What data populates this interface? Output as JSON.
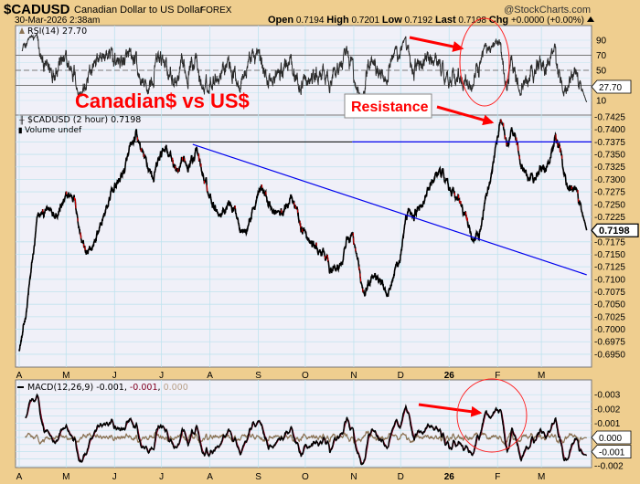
{
  "header": {
    "symbol": "$CADUSD",
    "name": "Canadian Dollar to US Dollar",
    "exchange": "FOREX",
    "brand": "@StockCharts.com",
    "datetime": "30-Mar-2026 2:38am",
    "open_label": "Open",
    "open": "0.7194",
    "high_label": "High",
    "high": "0.7201",
    "low_label": "Low",
    "low": "0.7192",
    "last_label": "Last",
    "last": "0.7198",
    "chg_label": "Chg",
    "chg": "+0.0000 (+0.00%)",
    "chg_icon": "triangle-up-icon"
  },
  "annotations": {
    "title": "Canadian$ vs US$",
    "resistance": "Resistance",
    "color": "#ff0000"
  },
  "colors": {
    "background": "#efce8f",
    "panel": "#f0f0f8",
    "grid": "#bfe3ee",
    "price": "#000000",
    "down_bar": "#e00000",
    "trendline": "#0000ee",
    "macd": "#000000",
    "signal": "#800020",
    "histogram": "#8b7355"
  },
  "chart_data": [
    {
      "type": "line",
      "panel": "RSI",
      "legend": "RSI(14) 27.70",
      "last_value": "27.70",
      "ylim": [
        0,
        100
      ],
      "ticks": [
        "90",
        "70",
        "50",
        "10"
      ],
      "reference_lines": [
        70,
        50,
        30
      ],
      "grid": true
    },
    {
      "type": "line",
      "panel": "price",
      "legend": "$CADUSD (2 hour) 0.7198",
      "volume_legend": "Volume undef",
      "last_value": "0.7198",
      "ylim": [
        0.6935,
        0.7435
      ],
      "ticks": [
        "0.7425",
        "0.7400",
        "0.7375",
        "0.7350",
        "0.7325",
        "0.7300",
        "0.7275",
        "0.7250",
        "0.7225",
        "0.7175",
        "0.7150",
        "0.7125",
        "0.7100",
        "0.7075",
        "0.7050",
        "0.7025",
        "0.7000",
        "0.6975",
        "0.6950"
      ],
      "x_ticks": [
        "A",
        "M",
        "J",
        "J",
        "A",
        "S",
        "O",
        "N",
        "D",
        "26",
        "F",
        "M"
      ],
      "x_tick_dates": [
        "2025-04-01",
        "2025-05-01",
        "2025-06-01",
        "2025-07-01",
        "2025-08-01",
        "2025-09-01",
        "2025-10-01",
        "2025-11-01",
        "2025-12-01",
        "2026-01-01",
        "2026-02-01",
        "2026-03-01"
      ],
      "x_range": [
        "2025-04-01",
        "2026-03-30"
      ],
      "grid": true,
      "series": [
        {
          "date": "2025-04-01",
          "value": 0.6965
        },
        {
          "date": "2025-04-04",
          "value": 0.7
        },
        {
          "date": "2025-04-09",
          "value": 0.712
        },
        {
          "date": "2025-04-13",
          "value": 0.722
        },
        {
          "date": "2025-04-22",
          "value": 0.724
        },
        {
          "date": "2025-04-30",
          "value": 0.7255
        },
        {
          "date": "2025-05-06",
          "value": 0.727
        },
        {
          "date": "2025-05-11",
          "value": 0.718
        },
        {
          "date": "2025-05-15",
          "value": 0.714
        },
        {
          "date": "2025-05-22",
          "value": 0.72
        },
        {
          "date": "2025-05-30",
          "value": 0.727
        },
        {
          "date": "2025-06-06",
          "value": 0.731
        },
        {
          "date": "2025-06-11",
          "value": 0.735
        },
        {
          "date": "2025-06-15",
          "value": 0.738
        },
        {
          "date": "2025-06-21",
          "value": 0.733
        },
        {
          "date": "2025-06-26",
          "value": 0.7305
        },
        {
          "date": "2025-07-04",
          "value": 0.737
        },
        {
          "date": "2025-07-12",
          "value": 0.731
        },
        {
          "date": "2025-07-17",
          "value": 0.733
        },
        {
          "date": "2025-07-23",
          "value": 0.736
        },
        {
          "date": "2025-07-31",
          "value": 0.727
        },
        {
          "date": "2025-08-08",
          "value": 0.724
        },
        {
          "date": "2025-08-14",
          "value": 0.726
        },
        {
          "date": "2025-08-20",
          "value": 0.722
        },
        {
          "date": "2025-08-24",
          "value": 0.72
        },
        {
          "date": "2025-08-30",
          "value": 0.725
        },
        {
          "date": "2025-09-03",
          "value": 0.728
        },
        {
          "date": "2025-09-10",
          "value": 0.724
        },
        {
          "date": "2025-09-16",
          "value": 0.7225
        },
        {
          "date": "2025-09-22",
          "value": 0.728
        },
        {
          "date": "2025-09-28",
          "value": 0.721
        },
        {
          "date": "2025-10-04",
          "value": 0.717
        },
        {
          "date": "2025-10-12",
          "value": 0.715
        },
        {
          "date": "2025-10-18",
          "value": 0.7115
        },
        {
          "date": "2025-10-25",
          "value": 0.714
        },
        {
          "date": "2025-10-31",
          "value": 0.719
        },
        {
          "date": "2025-11-07",
          "value": 0.7075
        },
        {
          "date": "2025-11-15",
          "value": 0.7125
        },
        {
          "date": "2025-11-22",
          "value": 0.708
        },
        {
          "date": "2025-11-30",
          "value": 0.714
        },
        {
          "date": "2025-12-06",
          "value": 0.722
        },
        {
          "date": "2025-12-13",
          "value": 0.724
        },
        {
          "date": "2025-12-26",
          "value": 0.732
        },
        {
          "date": "2026-01-02",
          "value": 0.729
        },
        {
          "date": "2026-01-08",
          "value": 0.725
        },
        {
          "date": "2026-01-15",
          "value": 0.719
        },
        {
          "date": "2026-01-20",
          "value": 0.718
        },
        {
          "date": "2026-01-25",
          "value": 0.727
        },
        {
          "date": "2026-01-29",
          "value": 0.733
        },
        {
          "date": "2026-02-03",
          "value": 0.742
        },
        {
          "date": "2026-02-07",
          "value": 0.736
        },
        {
          "date": "2026-02-12",
          "value": 0.74
        },
        {
          "date": "2026-02-16",
          "value": 0.733
        },
        {
          "date": "2026-02-22",
          "value": 0.731
        },
        {
          "date": "2026-03-01",
          "value": 0.732
        },
        {
          "date": "2026-03-05",
          "value": 0.733
        },
        {
          "date": "2026-03-10",
          "value": 0.739
        },
        {
          "date": "2026-03-15",
          "value": 0.734
        },
        {
          "date": "2026-03-19",
          "value": 0.729
        },
        {
          "date": "2026-03-25",
          "value": 0.726
        },
        {
          "date": "2026-03-30",
          "value": 0.7198
        }
      ],
      "resistance_line": {
        "value": 0.7375,
        "from": "2025-06-12",
        "to": "2026-03-30"
      },
      "trend_line": {
        "from": {
          "date": "2025-07-21",
          "value": 0.737
        },
        "to": {
          "date": "2026-03-30",
          "value": 0.7109
        }
      }
    },
    {
      "type": "line",
      "panel": "MACD",
      "legend_prefix": "MACD(12,26,9)",
      "macd_value": "-0.001",
      "signal_value": "-0.001",
      "histogram_value": "0.000",
      "ylim": [
        -0.0025,
        0.0035
      ],
      "ticks": [
        "0.003",
        "0.002",
        "0.001",
        "-0.002"
      ],
      "markers": [
        "0.000",
        "-0.001"
      ],
      "x_ticks": [
        "A",
        "M",
        "J",
        "J",
        "A",
        "S",
        "O",
        "N",
        "D",
        "26",
        "F",
        "M"
      ],
      "grid": true
    }
  ]
}
